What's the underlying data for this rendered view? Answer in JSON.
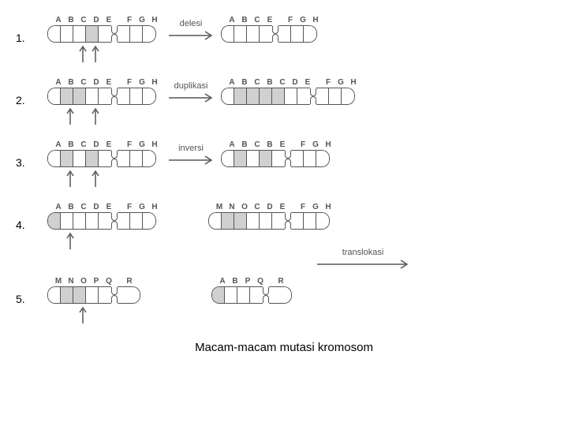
{
  "caption": "Macam-macam mutasi kromosom",
  "colors": {
    "stroke": "#555555",
    "fill_light": "#ffffff",
    "fill_gray": "#d0d0d0",
    "background": "#ffffff"
  },
  "seg_width": 16,
  "chrom_height": 20,
  "rows": [
    {
      "num": "1.",
      "label": "delesi",
      "left": {
        "letters": [
          "A",
          "B",
          "C",
          "D",
          "E",
          "",
          "F",
          "G",
          "H"
        ],
        "arm_left": [
          {
            "c": "w"
          },
          {
            "c": "w"
          },
          {
            "c": "w"
          },
          {
            "c": "g"
          },
          {
            "c": "w"
          }
        ],
        "arm_right": [
          {
            "c": "w"
          },
          {
            "c": "w"
          },
          {
            "c": "w"
          }
        ],
        "up_arrows": [
          2,
          3
        ]
      },
      "right": {
        "letters": [
          "A",
          "B",
          "C",
          "E",
          "",
          "F",
          "G",
          "H"
        ],
        "arm_left": [
          {
            "c": "w"
          },
          {
            "c": "w"
          },
          {
            "c": "w"
          },
          {
            "c": "w"
          }
        ],
        "arm_right": [
          {
            "c": "w"
          },
          {
            "c": "w"
          },
          {
            "c": "w"
          }
        ]
      }
    },
    {
      "num": "2.",
      "label": "duplikasi",
      "left": {
        "letters": [
          "A",
          "B",
          "C",
          "D",
          "E",
          "",
          "F",
          "G",
          "H"
        ],
        "arm_left": [
          {
            "c": "w"
          },
          {
            "c": "g"
          },
          {
            "c": "g"
          },
          {
            "c": "w"
          },
          {
            "c": "w"
          }
        ],
        "arm_right": [
          {
            "c": "w"
          },
          {
            "c": "w"
          },
          {
            "c": "w"
          }
        ],
        "up_arrows": [
          1,
          3
        ]
      },
      "right": {
        "letters": [
          "A",
          "B",
          "C",
          "B",
          "C",
          "D",
          "E",
          "",
          "F",
          "G",
          "H"
        ],
        "arm_left": [
          {
            "c": "w"
          },
          {
            "c": "g"
          },
          {
            "c": "g"
          },
          {
            "c": "g"
          },
          {
            "c": "g"
          },
          {
            "c": "w"
          },
          {
            "c": "w"
          }
        ],
        "arm_right": [
          {
            "c": "w"
          },
          {
            "c": "w"
          },
          {
            "c": "w"
          }
        ]
      }
    },
    {
      "num": "3.",
      "label": "inversi",
      "left": {
        "letters": [
          "A",
          "B",
          "C",
          "D",
          "E",
          "",
          "F",
          "G",
          "H"
        ],
        "arm_left": [
          {
            "c": "w"
          },
          {
            "c": "g"
          },
          {
            "c": "w"
          },
          {
            "c": "g"
          },
          {
            "c": "w"
          }
        ],
        "arm_right": [
          {
            "c": "w"
          },
          {
            "c": "w"
          },
          {
            "c": "w"
          }
        ],
        "up_arrows": [
          1,
          3
        ]
      },
      "right": {
        "letters": [
          "A",
          "B",
          "C",
          "B",
          "E",
          "",
          "F",
          "G",
          "H"
        ],
        "arm_left": [
          {
            "c": "w"
          },
          {
            "c": "g"
          },
          {
            "c": "w"
          },
          {
            "c": "g"
          },
          {
            "c": "w"
          }
        ],
        "arm_right": [
          {
            "c": "w"
          },
          {
            "c": "w"
          },
          {
            "c": "w"
          }
        ]
      }
    }
  ],
  "row4": {
    "num": "4.",
    "left": {
      "letters": [
        "A",
        "B",
        "C",
        "D",
        "E",
        "",
        "F",
        "G",
        "H"
      ],
      "arm_left": [
        {
          "c": "g"
        },
        {
          "c": "w"
        },
        {
          "c": "w"
        },
        {
          "c": "w"
        },
        {
          "c": "w"
        }
      ],
      "arm_right": [
        {
          "c": "w"
        },
        {
          "c": "w"
        },
        {
          "c": "w"
        }
      ],
      "up_arrows": [
        1
      ]
    },
    "right": {
      "letters": [
        "M",
        "N",
        "O",
        "C",
        "D",
        "E",
        "",
        "F",
        "G",
        "H"
      ],
      "arm_left": [
        {
          "c": "w"
        },
        {
          "c": "g"
        },
        {
          "c": "g"
        },
        {
          "c": "w"
        },
        {
          "c": "w"
        },
        {
          "c": "w"
        }
      ],
      "arm_right": [
        {
          "c": "w"
        },
        {
          "c": "w"
        },
        {
          "c": "w"
        }
      ]
    }
  },
  "translokasi_label": "translokasi",
  "row5": {
    "num": "5.",
    "left": {
      "letters": [
        "M",
        "N",
        "O",
        "P",
        "Q",
        "",
        "R"
      ],
      "arm_left": [
        {
          "c": "w"
        },
        {
          "c": "g"
        },
        {
          "c": "g"
        },
        {
          "c": "w"
        },
        {
          "c": "w"
        }
      ],
      "arm_right": [
        {
          "c": "w",
          "w": 28
        }
      ],
      "up_arrows": [
        2
      ]
    },
    "right": {
      "letters": [
        "A",
        "B",
        "P",
        "Q",
        "",
        "R"
      ],
      "arm_left": [
        {
          "c": "g"
        },
        {
          "c": "w"
        },
        {
          "c": "w"
        },
        {
          "c": "w"
        }
      ],
      "arm_right": [
        {
          "c": "w",
          "w": 28
        }
      ]
    }
  }
}
